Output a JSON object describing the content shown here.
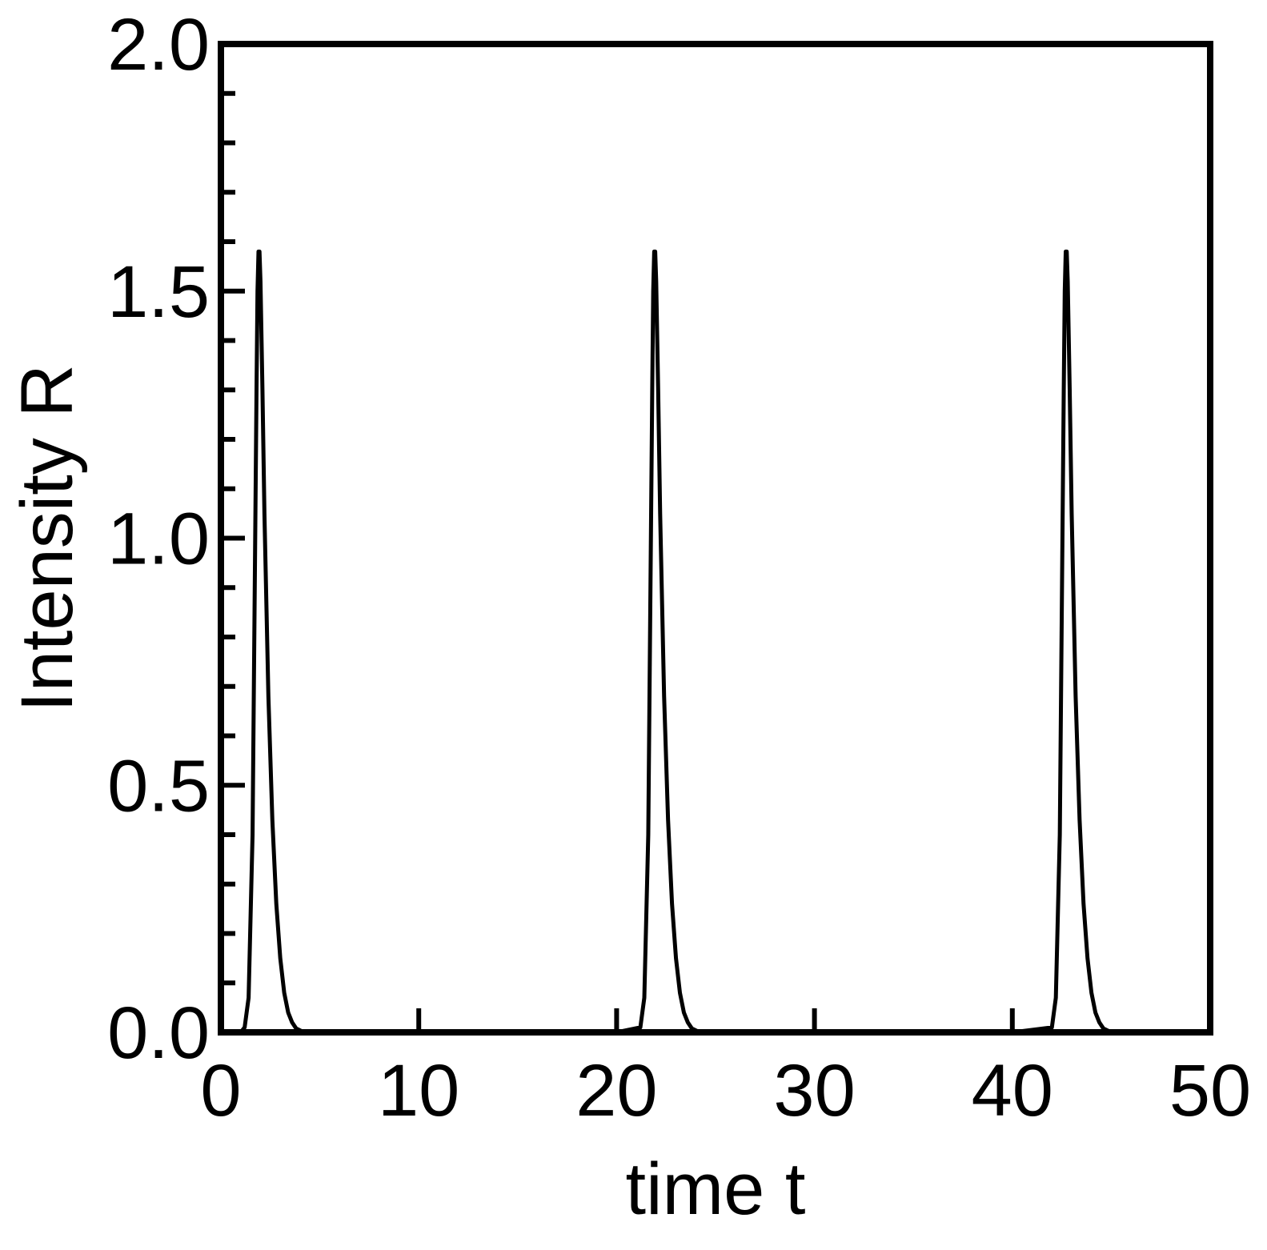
{
  "chart_data": {
    "type": "line",
    "title": "",
    "xlabel": "time t",
    "ylabel": "Intensity R",
    "xlim": [
      0,
      50
    ],
    "ylim": [
      0,
      2.0
    ],
    "x_ticks": [
      0,
      10,
      20,
      30,
      40,
      50
    ],
    "x_tick_labels": [
      "0",
      "10",
      "20",
      "30",
      "40",
      "50"
    ],
    "y_ticks": [
      0.0,
      0.5,
      1.0,
      1.5,
      2.0
    ],
    "y_tick_labels": [
      "0.0",
      "0.5",
      "1.0",
      "1.5",
      "2.0"
    ],
    "y_minor_step": 0.1,
    "grid": false,
    "legend": "none",
    "line_color": "#000000",
    "series": [
      {
        "x": [
          0,
          1.0,
          1.2,
          1.4,
          1.6,
          1.7,
          1.8,
          1.85,
          1.9,
          1.95,
          2.0,
          2.1,
          2.2,
          2.4,
          2.6,
          2.8,
          3.0,
          3.2,
          3.4,
          3.6,
          3.8,
          4.2,
          5,
          10,
          20,
          21.2,
          21.4,
          21.6,
          21.7,
          21.8,
          21.85,
          21.9,
          21.95,
          22.0,
          22.1,
          22.2,
          22.4,
          22.6,
          22.8,
          23.0,
          23.2,
          23.4,
          23.6,
          23.8,
          24.2,
          25,
          30,
          40,
          42.0,
          42.2,
          42.4,
          42.5,
          42.6,
          42.65,
          42.7,
          42.75,
          42.8,
          42.9,
          43.0,
          43.2,
          43.4,
          43.6,
          43.8,
          44.0,
          44.2,
          44.4,
          44.6,
          45.0,
          46,
          50
        ],
        "y": [
          0,
          0,
          0.01,
          0.07,
          0.4,
          0.85,
          1.3,
          1.5,
          1.58,
          1.58,
          1.52,
          1.3,
          1.05,
          0.68,
          0.43,
          0.26,
          0.15,
          0.08,
          0.04,
          0.02,
          0.008,
          0,
          0,
          0,
          0,
          0.01,
          0.07,
          0.4,
          0.85,
          1.3,
          1.5,
          1.58,
          1.58,
          1.52,
          1.3,
          1.05,
          0.68,
          0.43,
          0.26,
          0.15,
          0.08,
          0.04,
          0.02,
          0.008,
          0,
          0,
          0,
          0,
          0.01,
          0.07,
          0.4,
          0.85,
          1.3,
          1.5,
          1.58,
          1.58,
          1.52,
          1.3,
          1.05,
          0.68,
          0.43,
          0.26,
          0.15,
          0.08,
          0.04,
          0.02,
          0.008,
          0,
          0,
          0
        ]
      }
    ]
  }
}
